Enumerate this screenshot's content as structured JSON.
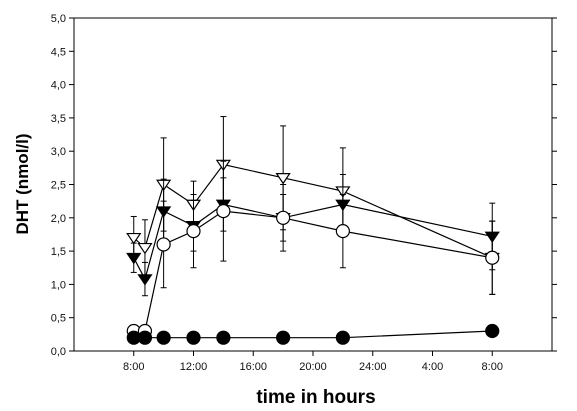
{
  "chart_data": {
    "type": "line",
    "xlabel": "time in hours",
    "ylabel": "DHT (nmol/l)",
    "x_ticks": [
      "8:00",
      "12:00",
      "16:00",
      "20:00",
      "24:00",
      "4:00",
      "8:00"
    ],
    "x_tick_hours": [
      8,
      12,
      16,
      20,
      24,
      28,
      32
    ],
    "xlim_hours": [
      4,
      36
    ],
    "y_ticks": [
      "0,0",
      "0,5",
      "1,0",
      "1,5",
      "2,0",
      "2,5",
      "3,0",
      "3,5",
      "4,0",
      "4,5",
      "5,0"
    ],
    "ylim": [
      0,
      5
    ],
    "grid": false,
    "series": [
      {
        "marker": "triangle-down-open",
        "x_hours": [
          8,
          8.75,
          10,
          12,
          14,
          18,
          22,
          32
        ],
        "y": [
          1.7,
          1.55,
          2.5,
          2.2,
          2.8,
          2.6,
          2.4,
          1.4
        ],
        "err": [
          0.32,
          0.42,
          0.7,
          0.35,
          0.72,
          0.78,
          0.65,
          0.55
        ]
      },
      {
        "marker": "triangle-down-filled",
        "x_hours": [
          8,
          8.75,
          10,
          12,
          14,
          18,
          22,
          32
        ],
        "y": [
          1.4,
          1.08,
          2.1,
          1.88,
          2.2,
          2.0,
          2.2,
          1.72
        ],
        "err": [
          0.22,
          0.25,
          0.48,
          0.38,
          0.4,
          0.35,
          0.45,
          0.5
        ]
      },
      {
        "marker": "circle-open",
        "x_hours": [
          8,
          8.75,
          10,
          12,
          14,
          18,
          22,
          32
        ],
        "y": [
          0.3,
          0.3,
          1.6,
          1.8,
          2.1,
          2.0,
          1.8,
          1.4
        ],
        "err": [
          0,
          0,
          0.65,
          0.55,
          0.75,
          0.5,
          0.55,
          0.55
        ]
      },
      {
        "marker": "circle-filled",
        "x_hours": [
          8,
          8.75,
          10,
          12,
          14,
          18,
          22,
          32
        ],
        "y": [
          0.2,
          0.2,
          0.2,
          0.2,
          0.2,
          0.2,
          0.2,
          0.3
        ],
        "err": [
          0,
          0,
          0,
          0,
          0,
          0,
          0,
          0
        ]
      }
    ]
  }
}
